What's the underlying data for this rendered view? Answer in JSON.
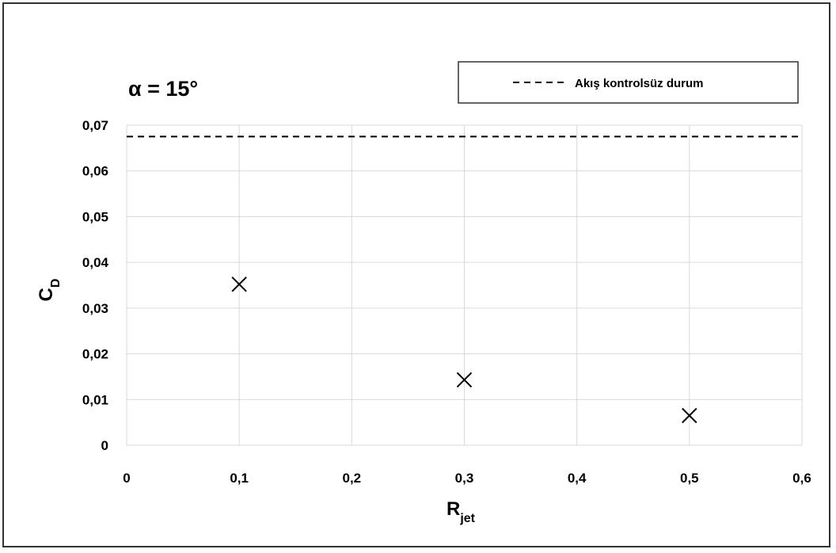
{
  "chart_data": {
    "type": "scatter",
    "annotation": "α = 15°",
    "xlabel": {
      "main": "R",
      "sub": "jet"
    },
    "ylabel": {
      "main": "C",
      "sub": "D"
    },
    "xlim": [
      0,
      0.6
    ],
    "ylim": [
      0,
      0.07
    ],
    "x_ticks": [
      0,
      0.1,
      0.2,
      0.3,
      0.4,
      0.5,
      0.6
    ],
    "x_tick_labels": [
      "0",
      "0,1",
      "0,2",
      "0,3",
      "0,4",
      "0,5",
      "0,6"
    ],
    "y_ticks": [
      0,
      0.01,
      0.02,
      0.03,
      0.04,
      0.05,
      0.06,
      0.07
    ],
    "y_tick_labels": [
      "0",
      "0,01",
      "0,02",
      "0,03",
      "0,04",
      "0,05",
      "0,06",
      "0,07"
    ],
    "grid": true,
    "legend_position": "top-right",
    "series": [
      {
        "type": "scatter",
        "marker": "x",
        "color": "#000000",
        "points": [
          {
            "x": 0.1,
            "y": 0.0352
          },
          {
            "x": 0.3,
            "y": 0.0143
          },
          {
            "x": 0.5,
            "y": 0.0065
          }
        ]
      },
      {
        "name": "Akış kontrolsüz durum",
        "type": "hline",
        "style": "dashed",
        "color": "#000000",
        "y": 0.0675
      }
    ]
  }
}
